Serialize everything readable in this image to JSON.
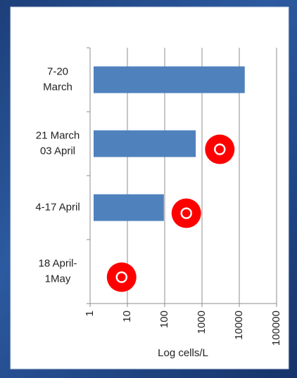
{
  "chart_data": {
    "type": "bar",
    "orientation": "horizontal",
    "categories": [
      [
        "7-20",
        "March"
      ],
      [
        "21 March",
        "03 April"
      ],
      [
        "4-17 April"
      ],
      [
        "18 April-",
        "1May"
      ]
    ],
    "series": [
      {
        "color": "#4f81bd",
        "values": [
          14000,
          680,
          95,
          null
        ]
      },
      {
        "color": "#ff0000",
        "values": [
          null,
          3000,
          380,
          7
        ]
      }
    ],
    "xlabel": "Log cells/L",
    "xscale": "log",
    "xlim": [
      1,
      100000
    ],
    "xticks": [
      1,
      10,
      100,
      1000,
      10000,
      100000
    ],
    "grid": true
  }
}
